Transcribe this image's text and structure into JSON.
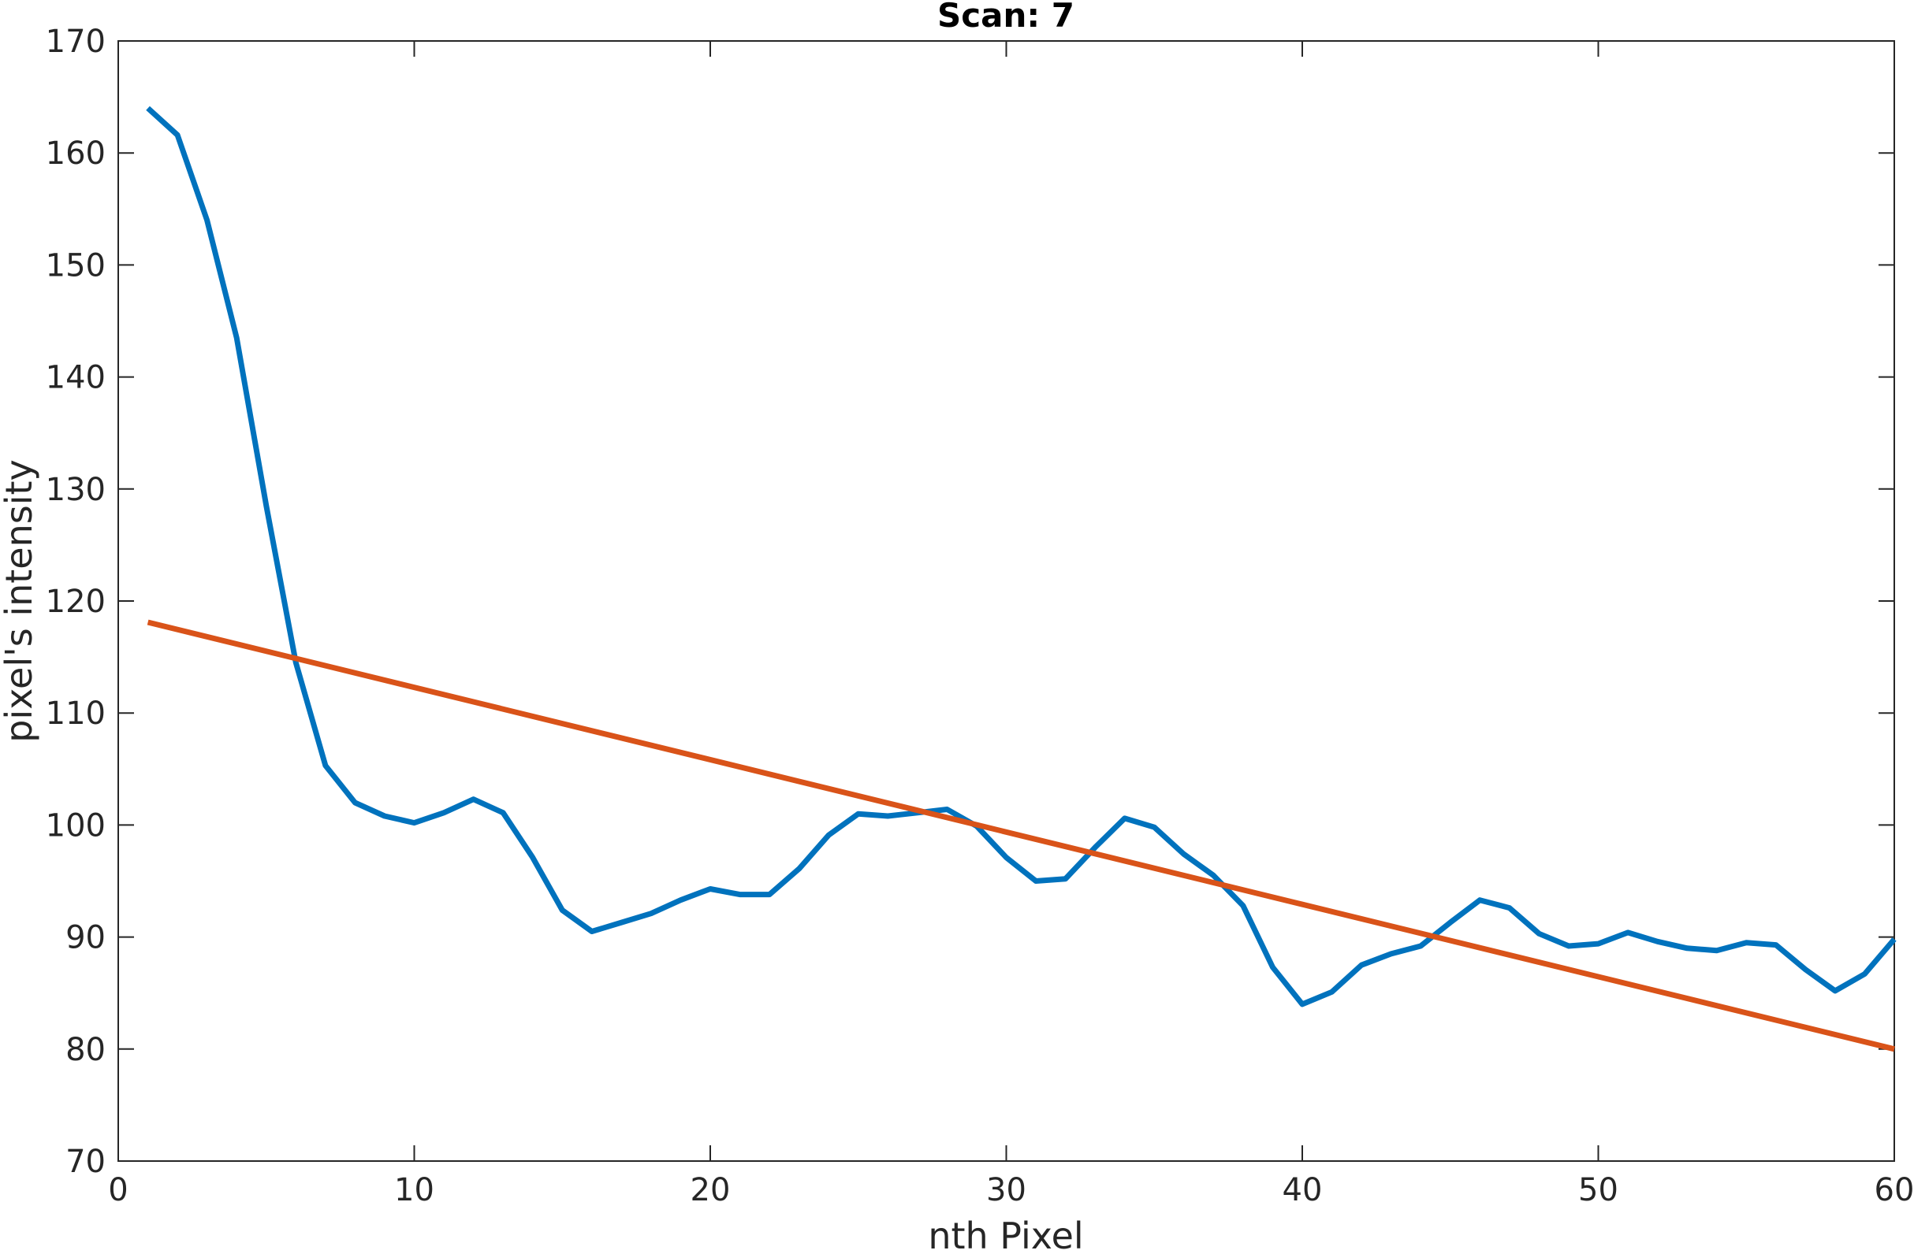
{
  "chart_data": {
    "type": "line",
    "title": "Scan: 7",
    "xlabel": "nth Pixel",
    "ylabel": "pixel's intensity",
    "xlim": [
      0,
      60
    ],
    "ylim": [
      70,
      170
    ],
    "xticks": [
      0,
      10,
      20,
      30,
      40,
      50,
      60
    ],
    "yticks": [
      70,
      80,
      90,
      100,
      110,
      120,
      130,
      140,
      150,
      160,
      170
    ],
    "grid": false,
    "box": true,
    "series": [
      {
        "color": "#0072BD",
        "x": [
          1,
          2,
          3,
          4,
          5,
          6,
          7,
          8,
          9,
          10,
          11,
          12,
          13,
          14,
          15,
          16,
          17,
          18,
          19,
          20,
          21,
          22,
          23,
          24,
          25,
          26,
          27,
          28,
          29,
          30,
          31,
          32,
          33,
          34,
          35,
          36,
          37,
          38,
          39,
          40,
          41,
          42,
          43,
          44,
          45,
          46,
          47,
          48,
          49,
          50,
          51,
          52,
          53,
          54,
          55,
          56,
          57,
          58,
          59,
          60
        ],
        "y": [
          164,
          161.6,
          154,
          143.5,
          128.5,
          114.5,
          105.3,
          102,
          100.8,
          100.2,
          101.1,
          102.3,
          101.1,
          97.1,
          92.4,
          90.5,
          91.3,
          92.1,
          93.3,
          94.3,
          93.8,
          93.8,
          96.1,
          99.1,
          101,
          100.8,
          101.1,
          101.4,
          99.9,
          97.1,
          95,
          95.2,
          98,
          100.6,
          99.8,
          97.4,
          95.5,
          92.8,
          87.3,
          84,
          85.1,
          87.5,
          88.5,
          89.2,
          91.3,
          93.3,
          92.6,
          90.3,
          89.2,
          89.4,
          90.4,
          89.6,
          89,
          88.8,
          89.5,
          89.3,
          87.1,
          85.2,
          86.7,
          89.8
        ]
      },
      {
        "color": "#D95319",
        "x": [
          1,
          60
        ],
        "y": [
          118.1,
          80
        ]
      }
    ]
  }
}
